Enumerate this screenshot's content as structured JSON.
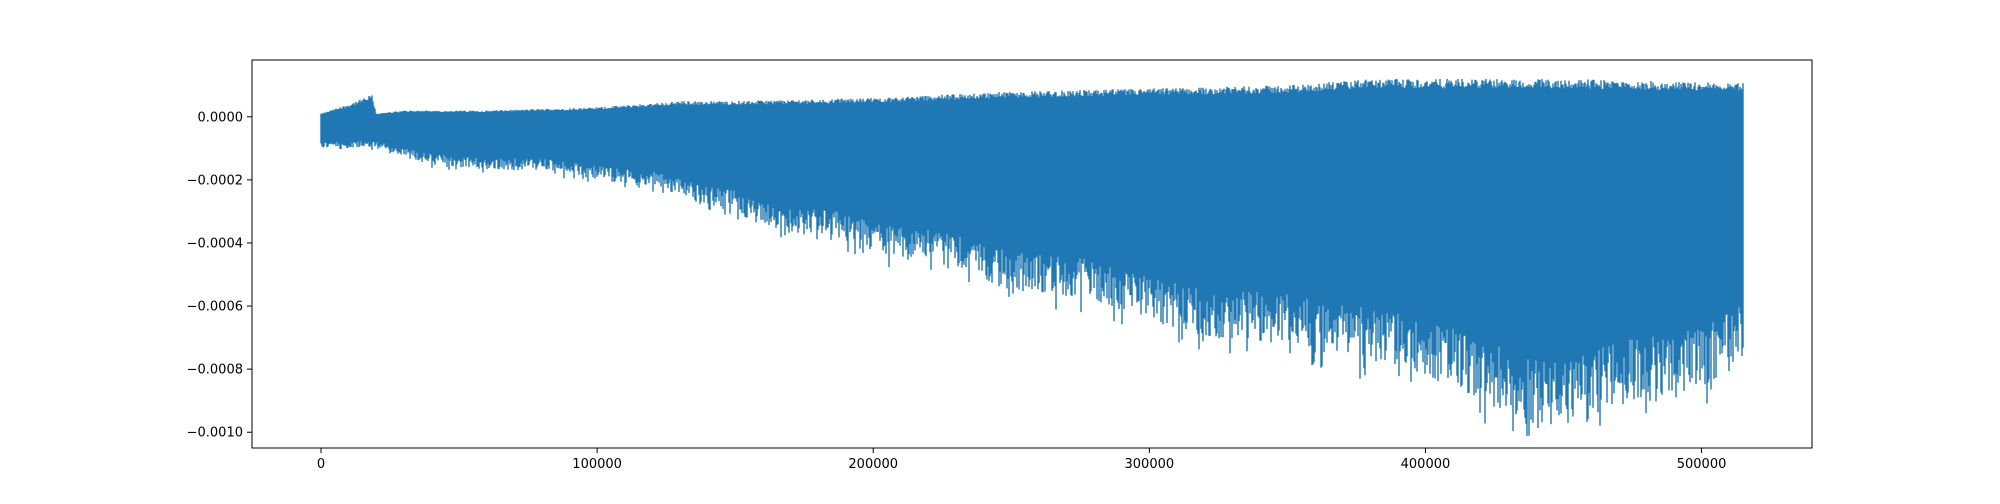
{
  "chart_data": {
    "type": "line",
    "title": "",
    "xlabel": "",
    "ylabel": "",
    "xlim": [
      -25000,
      540000
    ],
    "ylim": [
      -0.00105,
      0.00018
    ],
    "x_ticks": [
      0,
      100000,
      200000,
      300000,
      400000,
      500000
    ],
    "x_tick_labels": [
      "0",
      "100000",
      "200000",
      "300000",
      "400000",
      "500000"
    ],
    "y_ticks": [
      0.0,
      -0.0002,
      -0.0004,
      -0.0006,
      -0.0008,
      -0.001
    ],
    "y_tick_labels": [
      "0.0000",
      "−0.0002",
      "−0.0004",
      "−0.0006",
      "−0.0008",
      "−0.0010"
    ],
    "grid": false,
    "legend": "none",
    "series": [
      {
        "color": "#1f77b4",
        "x_range": [
          0,
          515000
        ],
        "upper_envelope": {
          "x": [
            0,
            10000,
            18500,
            20000,
            30000,
            60000,
            100000,
            130000,
            150000,
            200000,
            250000,
            300000,
            350000,
            380000,
            400000,
            450000,
            500000,
            514000
          ],
          "y": [
            1e-05,
            4e-05,
            7e-05,
            1e-05,
            2e-05,
            2e-05,
            3e-05,
            5e-05,
            5e-05,
            6e-05,
            8e-05,
            9e-05,
            0.0001,
            0.00012,
            0.00012,
            0.00012,
            0.00011,
            0.00011
          ]
        },
        "lower_envelope": {
          "x": [
            0,
            10000,
            20000,
            40000,
            60000,
            80000,
            100000,
            120000,
            140000,
            150000,
            160000,
            175000,
            180000,
            200000,
            210000,
            220000,
            250000,
            280000,
            300000,
            320000,
            350000,
            380000,
            400000,
            420000,
            440000,
            450000,
            460000,
            480000,
            500000,
            514000
          ],
          "y": [
            -0.0001,
            -0.0001,
            -0.0001,
            -0.00015,
            -0.00017,
            -0.00017,
            -0.0002,
            -0.00022,
            -0.00028,
            -0.0003,
            -0.00035,
            -0.00038,
            -0.00036,
            -0.00043,
            -0.00045,
            -0.00045,
            -0.00055,
            -0.00058,
            -0.00065,
            -0.0007,
            -0.00072,
            -0.00078,
            -0.00082,
            -0.0009,
            -0.00098,
            -0.00099,
            -0.00094,
            -0.00089,
            -0.00086,
            -0.00077
          ]
        }
      }
    ]
  }
}
